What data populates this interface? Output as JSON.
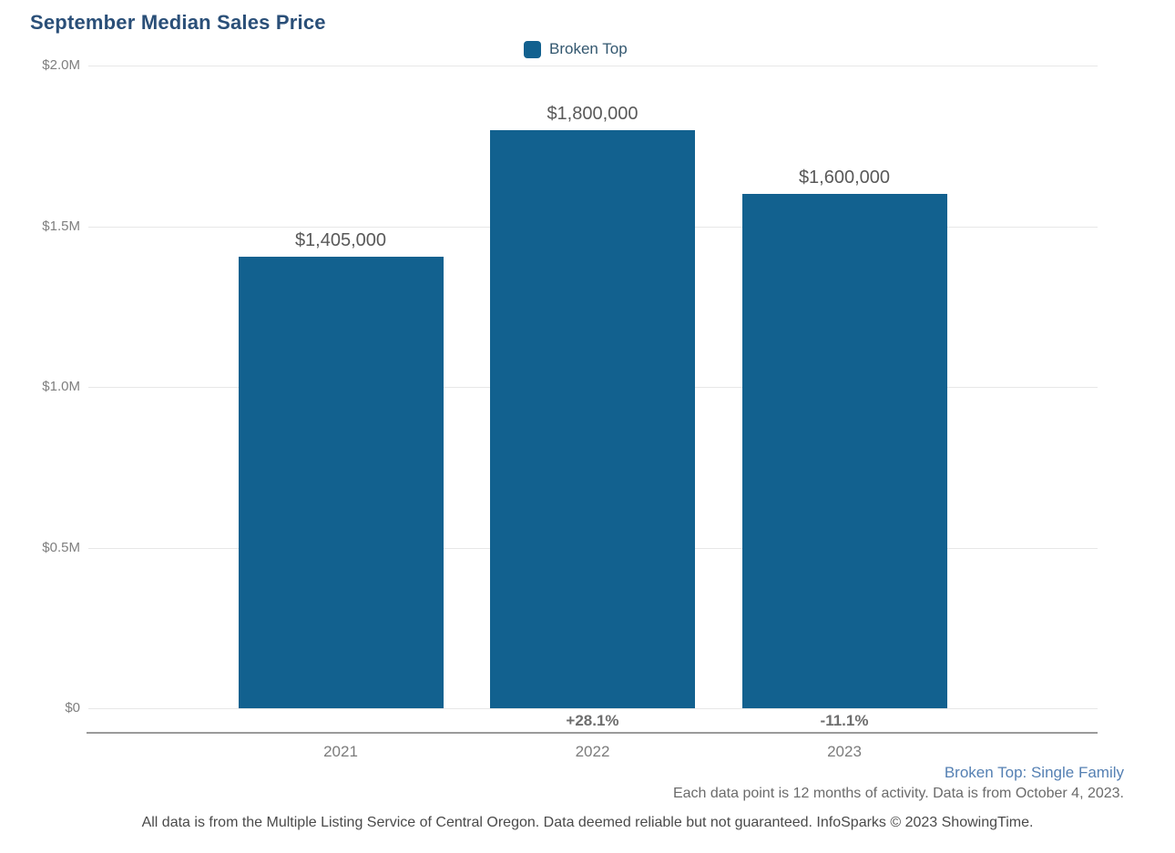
{
  "page": {
    "title": "September Median Sales Price"
  },
  "legend": {
    "label": "Broken Top",
    "color": "#12618f"
  },
  "chart_data": {
    "type": "bar",
    "title": "September Median Sales Price",
    "series_name": "Broken Top",
    "categories": [
      "2021",
      "2022",
      "2023"
    ],
    "values": [
      1405000,
      1800000,
      1600000
    ],
    "value_labels": [
      "$1,405,000",
      "$1,800,000",
      "$1,600,000"
    ],
    "pct_change_labels": [
      "",
      "+28.1%",
      "-11.1%"
    ],
    "ylim": [
      0,
      2000000
    ],
    "yticks": [
      0,
      500000,
      1000000,
      1500000,
      2000000
    ],
    "ytick_labels": [
      "$0",
      "$0.5M",
      "$1.0M",
      "$1.5M",
      "$2.0M"
    ],
    "bar_color": "#12618f",
    "grid": true,
    "legend_position": "top-center",
    "xlabel": "",
    "ylabel": ""
  },
  "footnotes": {
    "series_detail": "Broken Top: Single Family",
    "data_note": "Each data point is 12 months of activity. Data is from October 4, 2023.",
    "disclaimer": "All data is from the Multiple Listing Service of Central Oregon. Data deemed reliable but not guaranteed. InfoSparks © 2023 ShowingTime."
  }
}
